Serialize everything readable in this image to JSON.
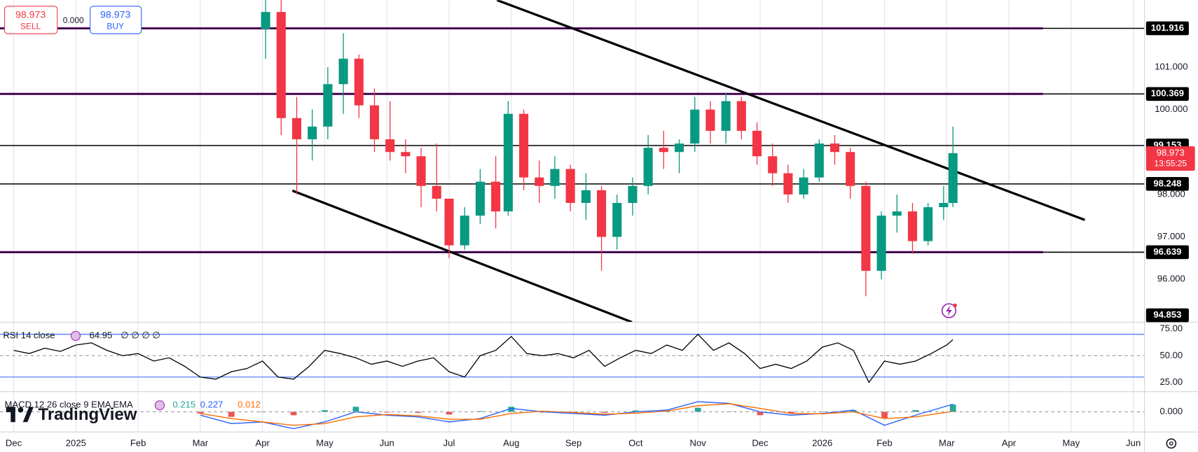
{
  "trade_buttons": {
    "sell_price": "98.973",
    "sell": "SELL",
    "spread": "0.000",
    "buy_price": "98.973",
    "buy": "BUY"
  },
  "logo": "TradingView",
  "chart_data": [
    {
      "type": "candlestick",
      "x": [
        4.05,
        4.3,
        4.55,
        4.8,
        5.05,
        5.3,
        5.55,
        5.8,
        6.05,
        6.3,
        6.55,
        6.8,
        7.0,
        7.25,
        7.5,
        7.75,
        7.95,
        8.2,
        8.45,
        8.7,
        8.95,
        9.2,
        9.45,
        9.7,
        9.95,
        10.2,
        10.45,
        10.7,
        10.95,
        11.2,
        11.45,
        11.7,
        11.95,
        12.2,
        12.45,
        12.7,
        12.95,
        13.2,
        13.45,
        13.7,
        13.95,
        14.2,
        14.45,
        14.7,
        14.95,
        15.1
      ],
      "open": [
        101.9,
        102.3,
        99.8,
        99.3,
        99.6,
        100.6,
        101.2,
        100.1,
        99.3,
        99.0,
        98.9,
        98.2,
        97.9,
        96.8,
        97.5,
        98.3,
        97.6,
        99.9,
        98.4,
        98.2,
        98.6,
        97.8,
        98.1,
        97.0,
        97.8,
        98.2,
        99.1,
        99.0,
        99.2,
        100.0,
        99.5,
        100.2,
        99.5,
        98.9,
        98.5,
        98.0,
        98.4,
        99.2,
        99.0,
        98.2,
        96.2,
        97.5,
        97.6,
        96.9,
        97.7,
        97.8
      ],
      "high": [
        102.6,
        102.6,
        100.3,
        100.0,
        101.0,
        101.8,
        101.3,
        100.5,
        100.2,
        99.3,
        99.1,
        99.2,
        97.9,
        97.7,
        98.6,
        98.9,
        100.2,
        100.0,
        98.8,
        98.9,
        98.7,
        98.5,
        98.2,
        98.0,
        98.4,
        99.4,
        99.5,
        99.3,
        100.3,
        100.2,
        100.4,
        100.3,
        99.7,
        99.2,
        98.7,
        98.6,
        99.3,
        99.4,
        99.1,
        98.3,
        97.6,
        98.0,
        97.8,
        97.8,
        98.2,
        99.6
      ],
      "low": [
        101.2,
        99.4,
        98.0,
        98.8,
        99.3,
        99.9,
        99.8,
        99.0,
        98.8,
        98.5,
        97.7,
        97.6,
        96.5,
        96.7,
        97.3,
        97.2,
        97.5,
        98.1,
        97.8,
        97.9,
        97.6,
        97.4,
        96.2,
        96.7,
        97.5,
        98.0,
        98.6,
        98.5,
        99.0,
        99.2,
        99.2,
        99.3,
        98.7,
        98.2,
        97.8,
        97.9,
        98.3,
        98.7,
        97.9,
        95.6,
        96.0,
        97.1,
        96.6,
        96.8,
        97.4,
        97.7
      ],
      "close": [
        102.3,
        99.8,
        99.3,
        99.6,
        100.6,
        101.2,
        100.1,
        99.3,
        99.0,
        98.9,
        98.2,
        97.9,
        96.8,
        97.5,
        98.3,
        97.6,
        99.9,
        98.4,
        98.2,
        98.6,
        97.8,
        98.1,
        97.0,
        97.8,
        98.2,
        99.1,
        99.0,
        99.2,
        100.0,
        99.5,
        100.2,
        99.5,
        98.9,
        98.5,
        98.0,
        98.4,
        99.2,
        99.0,
        98.2,
        96.2,
        97.5,
        97.6,
        96.9,
        97.7,
        97.8,
        98.973
      ],
      "up_color": "#089981",
      "down_color": "#f23645",
      "xlim": [
        -0.22,
        18.18
      ],
      "xticks": [
        {
          "value": 0,
          "label": "Dec"
        },
        {
          "value": 1,
          "label": "2025"
        },
        {
          "value": 2,
          "label": "Feb"
        },
        {
          "value": 3,
          "label": "Mar"
        },
        {
          "value": 4,
          "label": "Apr"
        },
        {
          "value": 5,
          "label": "May"
        },
        {
          "value": 6,
          "label": "Jun"
        },
        {
          "value": 7,
          "label": "Jul"
        },
        {
          "value": 8,
          "label": "Aug"
        },
        {
          "value": 9,
          "label": "Sep"
        },
        {
          "value": 10,
          "label": "Oct"
        },
        {
          "value": 11,
          "label": "Nov"
        },
        {
          "value": 12,
          "label": "Dec"
        },
        {
          "value": 13,
          "label": "2026"
        },
        {
          "value": 14,
          "label": "Feb"
        },
        {
          "value": 15,
          "label": "Mar"
        },
        {
          "value": 16,
          "label": "Apr"
        },
        {
          "value": 17,
          "label": "May"
        },
        {
          "value": 18,
          "label": "Jun"
        }
      ],
      "ylim": [
        94.99,
        102.58
      ],
      "yticks": [
        {
          "value": 96,
          "label": "96.000"
        },
        {
          "value": 97,
          "label": "97.000"
        },
        {
          "value": 98,
          "label": "98.000"
        },
        {
          "value": 100,
          "label": "100.000"
        },
        {
          "value": 101,
          "label": "101.000"
        }
      ],
      "grid": true,
      "levels": [
        {
          "value": 101.916,
          "color": "#9c27b0"
        },
        {
          "value": 100.369,
          "color": "#9c27b0"
        },
        {
          "value": 99.153,
          "color": "#000000"
        },
        {
          "value": 98.248,
          "color": "#000000"
        },
        {
          "value": 96.639,
          "color": "#9c27b0"
        }
      ],
      "trendlines": [
        {
          "x": [
            7.77,
            17.22
          ],
          "y": [
            102.58,
            97.4
          ]
        },
        {
          "x": [
            4.48,
            9.94
          ],
          "y": [
            98.09,
            94.99
          ]
        }
      ],
      "last_price": 98.973,
      "countdown": "13:55:25",
      "low_marker": 94.853
    },
    {
      "type": "line",
      "title": "RSI 14 close",
      "extras": "∅ ∅ ∅ ∅",
      "x": [
        0,
        0.25,
        0.5,
        0.75,
        1,
        1.25,
        1.5,
        1.75,
        2,
        2.25,
        2.5,
        2.75,
        3,
        3.25,
        3.5,
        3.75,
        4,
        4.25,
        4.5,
        4.75,
        5,
        5.25,
        5.5,
        5.75,
        6,
        6.25,
        6.5,
        6.75,
        7,
        7.25,
        7.5,
        7.75,
        8,
        8.25,
        8.5,
        8.75,
        9,
        9.25,
        9.5,
        9.75,
        10,
        10.25,
        10.5,
        10.75,
        11,
        11.25,
        11.5,
        11.75,
        12,
        12.25,
        12.5,
        12.75,
        13,
        13.25,
        13.5,
        13.75,
        14,
        14.25,
        14.5,
        14.75,
        15,
        15.1
      ],
      "series": [
        {
          "color": "#000000",
          "values": [
            55,
            52,
            57,
            54,
            60,
            62,
            55,
            50,
            52,
            45,
            48,
            40,
            30,
            28,
            35,
            38,
            45,
            30,
            28,
            40,
            55,
            52,
            48,
            42,
            45,
            40,
            45,
            48,
            35,
            30,
            50,
            55,
            68,
            52,
            50,
            52,
            48,
            55,
            40,
            48,
            55,
            52,
            60,
            55,
            70,
            55,
            62,
            52,
            38,
            42,
            38,
            45,
            58,
            62,
            55,
            25,
            45,
            42,
            45,
            52,
            60,
            64.95
          ]
        }
      ],
      "ylim": [
        16.4,
        81.4
      ],
      "yticks": [
        {
          "value": 25,
          "label": "25.00"
        },
        {
          "value": 50,
          "label": "50.00"
        },
        {
          "value": 75,
          "label": "75.00"
        }
      ],
      "bands": [
        30,
        70
      ],
      "band_color": "#2962ff",
      "midline": 50
    },
    {
      "type": "macd",
      "title": "MACD 12 26 close 9 EMA EMA",
      "x": [
        3,
        3.5,
        4,
        4.5,
        5,
        5.5,
        6,
        6.5,
        7,
        7.5,
        8,
        8.5,
        9,
        9.5,
        10,
        10.5,
        11,
        11.5,
        12,
        12.5,
        13,
        13.5,
        14,
        14.5,
        15.1
      ],
      "histogram": {
        "color": "#26a69a",
        "down_color": "#ef5350",
        "values": [
          -0.05,
          -0.15,
          0.0,
          -0.1,
          0.05,
          0.15,
          -0.02,
          -0.03,
          -0.08,
          0.02,
          0.15,
          -0.02,
          -0.03,
          -0.03,
          0.04,
          0.03,
          0.12,
          0.01,
          -0.1,
          -0.05,
          0.01,
          0.05,
          -0.2,
          0.05,
          0.215
        ]
      },
      "macd": {
        "color": "#2962ff",
        "values": [
          -0.1,
          -0.35,
          -0.3,
          -0.5,
          -0.3,
          0.0,
          -0.1,
          -0.15,
          -0.3,
          -0.2,
          0.1,
          0.0,
          -0.05,
          -0.1,
          0.0,
          0.05,
          0.3,
          0.25,
          0.0,
          -0.1,
          -0.05,
          0.05,
          -0.4,
          -0.1,
          0.227
        ]
      },
      "signal": {
        "color": "#ff6d00",
        "values": [
          -0.05,
          -0.2,
          -0.3,
          -0.4,
          -0.35,
          -0.15,
          -0.08,
          -0.12,
          -0.22,
          -0.22,
          -0.05,
          0.02,
          -0.02,
          -0.07,
          -0.04,
          0.02,
          0.18,
          0.24,
          0.1,
          -0.05,
          -0.06,
          0.0,
          -0.2,
          -0.15,
          0.012
        ]
      },
      "ylim": [
        -0.6,
        0.6
      ],
      "yticks": [
        {
          "value": 0,
          "label": "0.000"
        }
      ]
    }
  ]
}
